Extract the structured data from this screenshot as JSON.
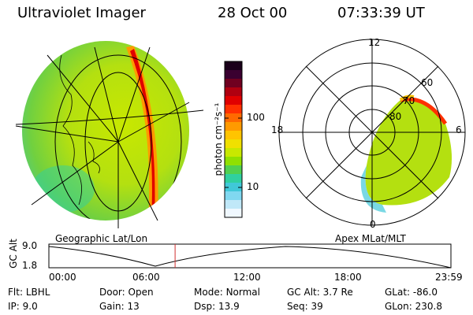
{
  "header": {
    "title": "Ultraviolet Imager",
    "date": "28 Oct 00",
    "time": "07:33:39 UT"
  },
  "left_panel": {
    "caption": "Geographic Lat/Lon"
  },
  "right_panel": {
    "caption": "Apex MLat/MLT",
    "mlt_labels": [
      "12",
      "18",
      "6",
      "0"
    ],
    "lat_labels": [
      "60",
      "70",
      "80"
    ]
  },
  "colorbar": {
    "axis_label": "photon cm⁻²s⁻¹",
    "ticks": [
      "100",
      "10"
    ],
    "colors": [
      "#1a001a",
      "#3a0030",
      "#700020",
      "#b00010",
      "#e00000",
      "#ff3000",
      "#ff6a00",
      "#ff9a00",
      "#ffc400",
      "#f0e000",
      "#c8e800",
      "#90e000",
      "#50d050",
      "#30d0a0",
      "#40c8d8",
      "#80d8f0",
      "#c0e8f8",
      "#f0f8ff"
    ]
  },
  "timeline": {
    "ylabel": "GC Alt",
    "ymax": "9.0",
    "ymin": "1.8",
    "xticks": [
      "00:00",
      "06:00",
      "12:00",
      "18:00",
      "23:59"
    ],
    "marker_fraction": 0.314
  },
  "footer": {
    "row1": [
      {
        "key": "Flt:",
        "value": "LBHL"
      },
      {
        "key": "Door:",
        "value": "Open"
      },
      {
        "key": "Mode:",
        "value": "Normal"
      },
      {
        "key": "GC Alt:",
        "value": "3.7 Re"
      },
      {
        "key": "GLat:",
        "value": "-86.0"
      }
    ],
    "row2": [
      {
        "key": "IP:",
        "value": "9.0"
      },
      {
        "key": "Gain:",
        "value": "13"
      },
      {
        "key": "Dsp:",
        "value": "13.9"
      },
      {
        "key": "Seq:",
        "value": "39"
      },
      {
        "key": "GLon:",
        "value": "230.8"
      }
    ]
  }
}
